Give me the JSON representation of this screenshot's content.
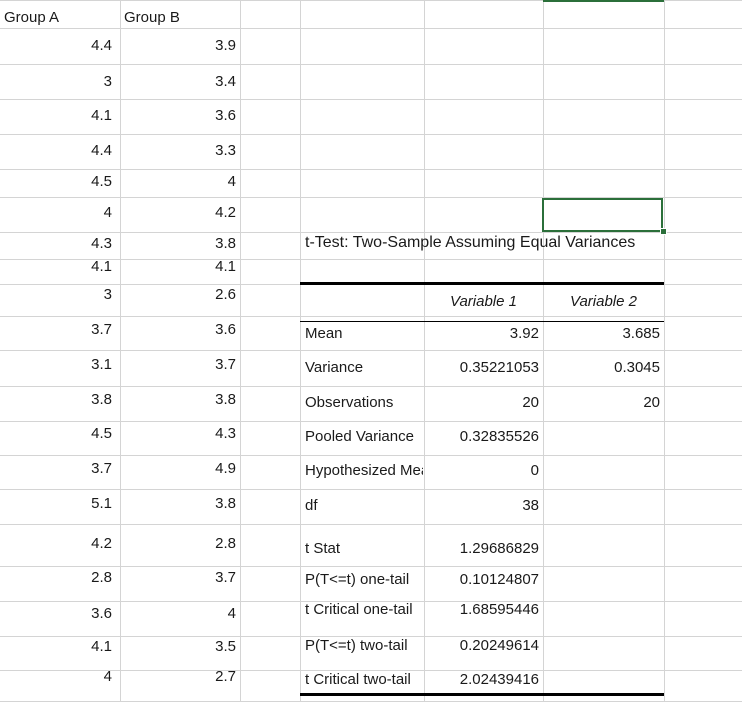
{
  "headers": {
    "group_a": "Group A",
    "group_b": "Group B"
  },
  "group_rows": [
    [
      "4.4",
      "3.9"
    ],
    [
      "3",
      "3.4"
    ],
    [
      "4.1",
      "3.6"
    ],
    [
      "4.4",
      "3.3"
    ],
    [
      "4.5",
      "4"
    ],
    [
      "4",
      "4.2"
    ],
    [
      "4.3",
      "3.8"
    ],
    [
      "4.1",
      "4.1"
    ],
    [
      "3",
      "2.6"
    ],
    [
      "3.7",
      "3.6"
    ],
    [
      "3.1",
      "3.7"
    ],
    [
      "3.8",
      "3.8"
    ],
    [
      "4.5",
      "4.3"
    ],
    [
      "3.7",
      "4.9"
    ],
    [
      "5.1",
      "3.8"
    ],
    [
      "4.2",
      "2.8"
    ],
    [
      "2.8",
      "3.7"
    ],
    [
      "3.6",
      "4"
    ],
    [
      "4.1",
      "3.5"
    ],
    [
      "4",
      "2.7"
    ]
  ],
  "ttest": {
    "title": "t-Test: Two-Sample Assuming Equal Variances",
    "col_headers": [
      "Variable 1",
      "Variable 2"
    ],
    "rows": [
      {
        "label": "Mean",
        "v1": "3.92",
        "v2": "3.685"
      },
      {
        "label": "Variance",
        "v1": "0.35221053",
        "v2": "0.3045"
      },
      {
        "label": "Observations",
        "v1": "20",
        "v2": "20"
      },
      {
        "label": "Pooled Variance",
        "v1": "0.32835526",
        "v2": ""
      },
      {
        "label": "Hypothesized Mean Difference",
        "v1": "0",
        "v2": ""
      },
      {
        "label": "df",
        "v1": "38",
        "v2": ""
      },
      {
        "label": "t Stat",
        "v1": "1.29686829",
        "v2": ""
      },
      {
        "label": "P(T<=t) one-tail",
        "v1": "0.10124807",
        "v2": ""
      },
      {
        "label": "t Critical one-tail",
        "v1": "1.68595446",
        "v2": ""
      },
      {
        "label": "P(T<=t) two-tail",
        "v1": "0.20249614",
        "v2": ""
      },
      {
        "label": "t Critical two-tail",
        "v1": "2.02439416",
        "v2": ""
      }
    ]
  },
  "colors": {
    "selection": "#2b6f3a",
    "gridline": "#d4d4d4"
  }
}
